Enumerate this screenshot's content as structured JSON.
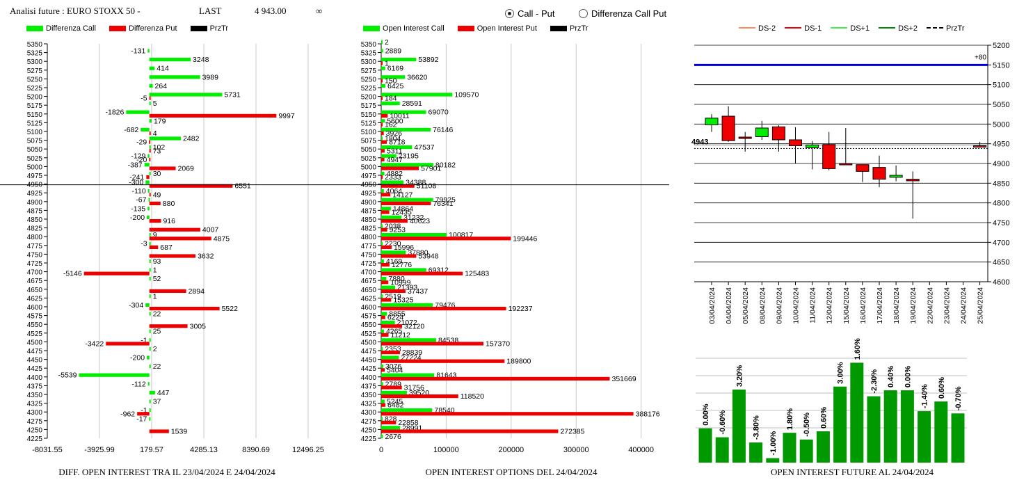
{
  "header": {
    "title": "Analisi future : EURO STOXX 50 -",
    "last_label": "LAST",
    "last_value": "4 943.00",
    "infinity": "∞",
    "radio_call_put": "Call - Put",
    "radio_diff": "Differenza Call Put",
    "selected": "Call - Put"
  },
  "colors": {
    "green": "#00ee00",
    "red": "#ee0000",
    "black": "#000000",
    "blue": "#0000dd",
    "dark_green": "#009900"
  },
  "chart_data": [
    {
      "type": "bar",
      "id": "diff",
      "legend": [
        "Differenza Call",
        "Differenza Put",
        "PrzTr"
      ],
      "categories": [
        "5350",
        "5325",
        "5300",
        "5275",
        "5250",
        "5225",
        "5200",
        "5175",
        "5150",
        "5125",
        "5100",
        "5075",
        "5050",
        "5025",
        "5000",
        "4975",
        "4950",
        "4925",
        "4900",
        "4875",
        "4850",
        "4825",
        "4800",
        "4775",
        "4750",
        "4725",
        "4700",
        "4675",
        "4650",
        "4625",
        "4600",
        "4575",
        "4550",
        "4525",
        "4500",
        "4475",
        "4450",
        "4425",
        "4400",
        "4375",
        "4350",
        "4325",
        "4300",
        "4275",
        "4250",
        "4225"
      ],
      "series": [
        {
          "name": "Differenza Call",
          "values": [
            null,
            -131,
            3248,
            414,
            3989,
            264,
            5731,
            5,
            -1826,
            179,
            -682,
            2482,
            102,
            -129,
            -387,
            30,
            -300,
            -110,
            -67,
            -135,
            -200,
            null,
            9,
            -3,
            null,
            93,
            1,
            52,
            null,
            1,
            -304,
            22,
            null,
            25,
            -1,
            2,
            -200,
            22,
            -5539,
            -112,
            447,
            37,
            -1,
            -17,
            null,
            null
          ]
        },
        {
          "name": "Differenza Put",
          "values": [
            null,
            null,
            null,
            null,
            null,
            null,
            -5,
            null,
            9997,
            null,
            4,
            -29,
            73,
            -20,
            2069,
            -241,
            6551,
            49,
            880,
            null,
            916,
            4007,
            4875,
            687,
            3632,
            null,
            -5146,
            null,
            2894,
            null,
            5522,
            null,
            3005,
            null,
            -3422,
            null,
            null,
            null,
            null,
            null,
            null,
            null,
            -962,
            null,
            1539,
            null
          ]
        }
      ],
      "price_level": "4950",
      "xticks": [
        "-8031.55",
        "-3925.99",
        "179.57",
        "4285.13",
        "8390.69",
        "12496.25"
      ],
      "xlim": [
        -8031.55,
        12496.25
      ],
      "caption": "DIFF. OPEN INTEREST TRA IL 23/04/2024 E 24/04/2024"
    },
    {
      "type": "bar",
      "id": "oi",
      "legend": [
        "Open Interest Call",
        "Open Interest Put",
        "PrzTr"
      ],
      "categories": [
        "5350",
        "5325",
        "5300",
        "5275",
        "5250",
        "5225",
        "5200",
        "5175",
        "5150",
        "5125",
        "5100",
        "5075",
        "5050",
        "5025",
        "5000",
        "4975",
        "4950",
        "4925",
        "4900",
        "4875",
        "4850",
        "4825",
        "4800",
        "4775",
        "4750",
        "4725",
        "4700",
        "4675",
        "4650",
        "4625",
        "4600",
        "4575",
        "4550",
        "4525",
        "4500",
        "4475",
        "4450",
        "4425",
        "4400",
        "4375",
        "4350",
        "4325",
        "4300",
        "4275",
        "4250",
        "4225"
      ],
      "series": [
        {
          "name": "Open Interest Call",
          "values": [
            2,
            2889,
            53892,
            6169,
            36620,
            6425,
            109570,
            28591,
            69070,
            5600,
            76146,
            1804,
            47537,
            23195,
            80182,
            4882,
            34388,
            4064,
            79925,
            14864,
            31232,
            2038,
            100817,
            2230,
            37880,
            4169,
            69312,
            7880,
            21393,
            2519,
            79476,
            8855,
            21072,
            4265,
            84538,
            2353,
            27224,
            3076,
            81643,
            2789,
            39520,
            5245,
            78540,
            828,
            28991,
            2676
          ]
        },
        {
          "name": "Open Interest Put",
          "values": [
            null,
            null,
            1,
            null,
            150,
            null,
            184,
            null,
            10011,
            162,
            3926,
            8718,
            5311,
            4947,
            57901,
            2333,
            51108,
            14127,
            76341,
            12435,
            40623,
            9253,
            199446,
            15996,
            53948,
            12776,
            125483,
            10999,
            37437,
            15325,
            192237,
            6224,
            32120,
            11212,
            157370,
            28839,
            189800,
            5404,
            351669,
            31756,
            118520,
            6482,
            388176,
            22858,
            272385,
            null
          ]
        }
      ],
      "price_level": "4950",
      "xticks": [
        "0",
        "100000",
        "200000",
        "300000",
        "400000"
      ],
      "xlim": [
        0,
        410000
      ],
      "caption": "OPEN INTEREST OPTIONS DEL 24/04/2024"
    },
    {
      "type": "candlestick",
      "id": "future",
      "legend": [
        "DS-2",
        "DS-1",
        "DS+1",
        "DS+2",
        "PrzTr"
      ],
      "dates": [
        "03/04/2024",
        "04/04/2024",
        "05/04/2024",
        "08/04/2024",
        "09/04/2024",
        "10/04/2024",
        "11/04/2024",
        "12/04/2024",
        "15/04/2024",
        "16/04/2024",
        "17/04/2024",
        "18/04/2024",
        "19/04/2024",
        "22/04/2024",
        "23/04/2024",
        "24/04/2024",
        "25/04/2024"
      ],
      "candles": [
        {
          "o": 4998,
          "c": 5015,
          "h": 5025,
          "l": 4980
        },
        {
          "o": 5020,
          "c": 4958,
          "h": 5045,
          "l": 4955
        },
        {
          "o": 4967,
          "c": 4965,
          "h": 4980,
          "l": 4930
        },
        {
          "o": 4968,
          "c": 4990,
          "h": 5008,
          "l": 4960
        },
        {
          "o": 4993,
          "c": 4960,
          "h": 4997,
          "l": 4930
        },
        {
          "o": 4960,
          "c": 4945,
          "h": 4992,
          "l": 4900
        },
        {
          "o": 4940,
          "c": 4947,
          "h": 4957,
          "l": 4885
        },
        {
          "o": 4948,
          "c": 4887,
          "h": 4980,
          "l": 4883
        },
        {
          "o": 4900,
          "c": 4897,
          "h": 4990,
          "l": 4897
        },
        {
          "o": 4897,
          "c": 4880,
          "h": 4897,
          "l": 4853
        },
        {
          "o": 4890,
          "c": 4860,
          "h": 4920,
          "l": 4840
        },
        {
          "o": 4865,
          "c": 4870,
          "h": 4895,
          "l": 4855
        },
        {
          "o": 4860,
          "c": 4856,
          "h": 4880,
          "l": 4760
        },
        null,
        null,
        null,
        {
          "o": 4945,
          "c": 4943,
          "h": 4955,
          "l": 4940
        }
      ],
      "ylim": [
        4600,
        5200
      ],
      "yticks": [
        "4600",
        "4650",
        "4700",
        "4750",
        "4800",
        "4850",
        "4900",
        "4950",
        "5000",
        "5050",
        "5100",
        "5150",
        "5200"
      ],
      "blue_level": 5150,
      "blue_label": "+80",
      "price_level": 4943,
      "price_label": "4943",
      "dashed_level": 4940
    },
    {
      "type": "bar",
      "id": "oi_future",
      "labels": [
        "0.00%",
        "-0.60%",
        "3.20%",
        "-3.80%",
        "-1.00%",
        "1.80%",
        "-0.50%",
        "0.60%",
        "3.00%",
        "1.60%",
        "-2.30%",
        "0.40%",
        "0.00%",
        "-1.40%",
        "0.60%",
        "-0.70%"
      ],
      "values": [
        46,
        34,
        98,
        27,
        6,
        40,
        31,
        42,
        102,
        134,
        89,
        97,
        97,
        69,
        82,
        66
      ],
      "caption": "OPEN INTEREST FUTURE AL 24/04/2024"
    }
  ]
}
